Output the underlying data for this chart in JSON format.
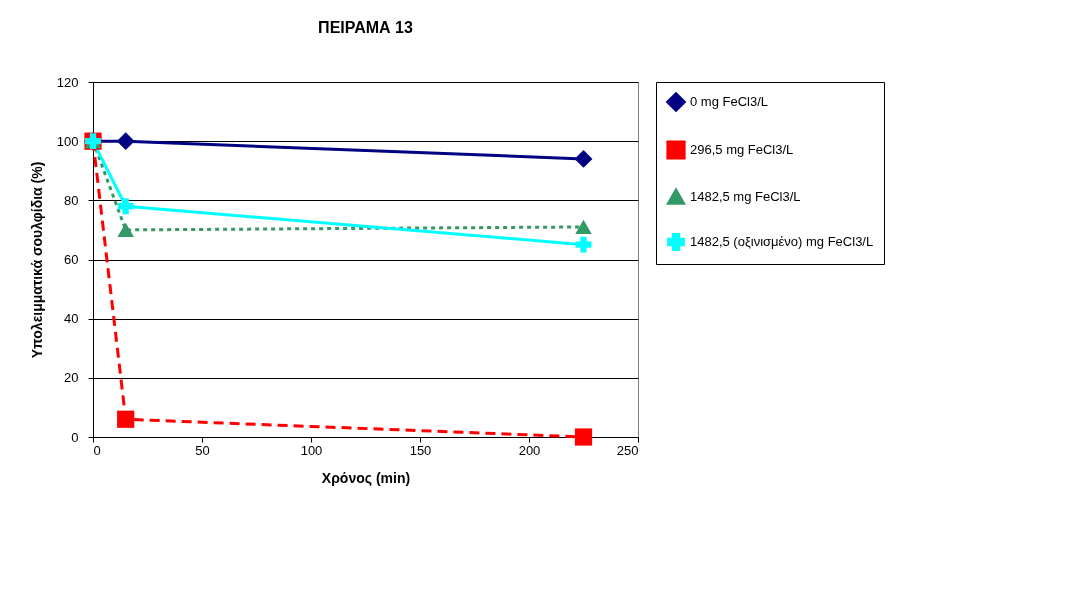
{
  "chart_data": {
    "type": "line",
    "title": "ΠΕΙΡΑΜΑ 13",
    "xlabel": "Χρόνος (min)",
    "ylabel": "Υπολειμματικά σουλφίδια (%)",
    "x": [
      0,
      15,
      225
    ],
    "series": [
      {
        "name": "0 mg FeCl3/L",
        "color": "#000080",
        "values": [
          100,
          100,
          94
        ],
        "marker": "diamond",
        "line_style": "solid"
      },
      {
        "name": "296,5 mg FeCl3/L",
        "color": "#ff0000",
        "values": [
          100,
          6,
          0
        ],
        "marker": "square",
        "line_style": "dashed"
      },
      {
        "name": "1482,5 mg FeCl3/L",
        "color": "#339966",
        "values": [
          100,
          70,
          71
        ],
        "marker": "triangle",
        "line_style": "dotted"
      },
      {
        "name": "1482,5 (οξινισμένο) mg FeCl3/L",
        "color": "#00ffff",
        "values": [
          100,
          78,
          65
        ],
        "marker": "cross",
        "line_style": "solid"
      }
    ],
    "xlim": [
      0,
      250
    ],
    "xticks": [
      0,
      50,
      100,
      150,
      200,
      250
    ],
    "ylim": [
      0,
      120
    ],
    "yticks": [
      0,
      20,
      40,
      60,
      80,
      100,
      120
    ],
    "grid": "y",
    "legend": "right"
  }
}
